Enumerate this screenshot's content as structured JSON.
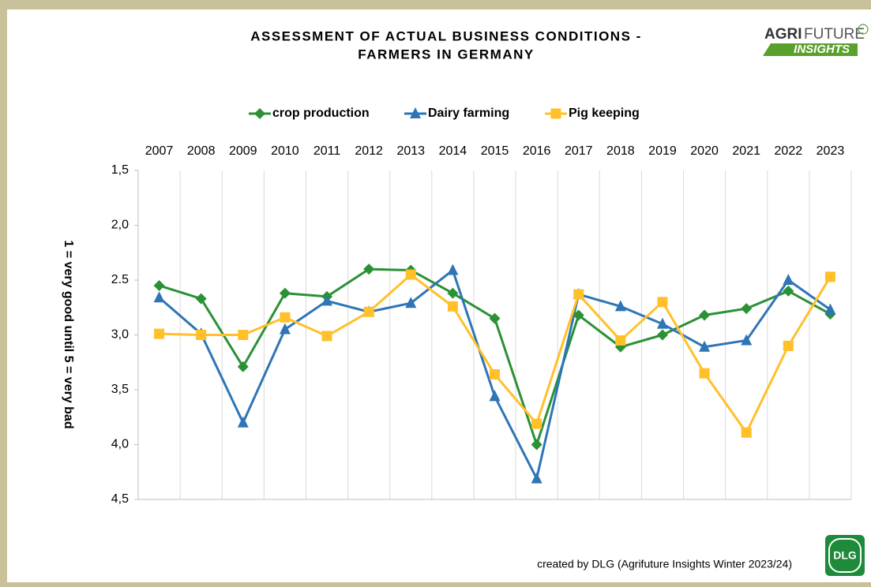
{
  "chart_data": {
    "type": "line",
    "title": [
      "ASSESSMENT OF ACTUAL BUSINESS CONDITIONS -",
      "FARMERS IN GERMANY"
    ],
    "ylabel": "1 = very good until 5 = very bad",
    "footer": "created by DLG (Agrifuture Insights Winter 2023/24)",
    "logo": {
      "agri": "AGRI",
      "future": "FUTURE",
      "insights": "INSIGHTS",
      "dlg": "DLG"
    },
    "categories": [
      "2007",
      "2008",
      "2009",
      "2010",
      "2011",
      "2012",
      "2013",
      "2014",
      "2015",
      "2016",
      "2017",
      "2018",
      "2019",
      "2020",
      "2021",
      "2022",
      "2023"
    ],
    "series": [
      {
        "name": "crop production",
        "color": "#2a9134",
        "marker": "diamond",
        "values": [
          2.55,
          2.67,
          3.29,
          2.62,
          2.65,
          2.4,
          2.41,
          2.62,
          2.85,
          4.0,
          2.82,
          3.11,
          3.0,
          2.82,
          2.76,
          2.6,
          2.81
        ]
      },
      {
        "name": "Dairy farming",
        "color": "#2e75b6",
        "marker": "triangle",
        "values": [
          2.66,
          2.99,
          3.8,
          2.95,
          2.69,
          2.79,
          2.71,
          2.41,
          3.56,
          4.31,
          2.63,
          2.74,
          2.9,
          3.11,
          3.05,
          2.5,
          2.77
        ]
      },
      {
        "name": "Pig keeping",
        "color": "#ffc02a",
        "marker": "square",
        "values": [
          2.99,
          3.0,
          3.0,
          2.84,
          3.01,
          2.79,
          2.45,
          2.74,
          3.36,
          3.81,
          2.63,
          3.05,
          2.7,
          3.35,
          3.89,
          3.1,
          2.47
        ]
      }
    ],
    "ylim": [
      1.5,
      4.5
    ],
    "y_inverted": true,
    "yticks": [
      {
        "value": 1.5,
        "label": "1,5"
      },
      {
        "value": 2.0,
        "label": "2,0"
      },
      {
        "value": 2.5,
        "label": "2.5"
      },
      {
        "value": 3.0,
        "label": "3,0"
      },
      {
        "value": 3.5,
        "label": "3,5"
      },
      {
        "value": 4.0,
        "label": "4,0"
      },
      {
        "value": 4.5,
        "label": "4,5"
      }
    ],
    "xaxis_position": "top",
    "legend": "top"
  }
}
